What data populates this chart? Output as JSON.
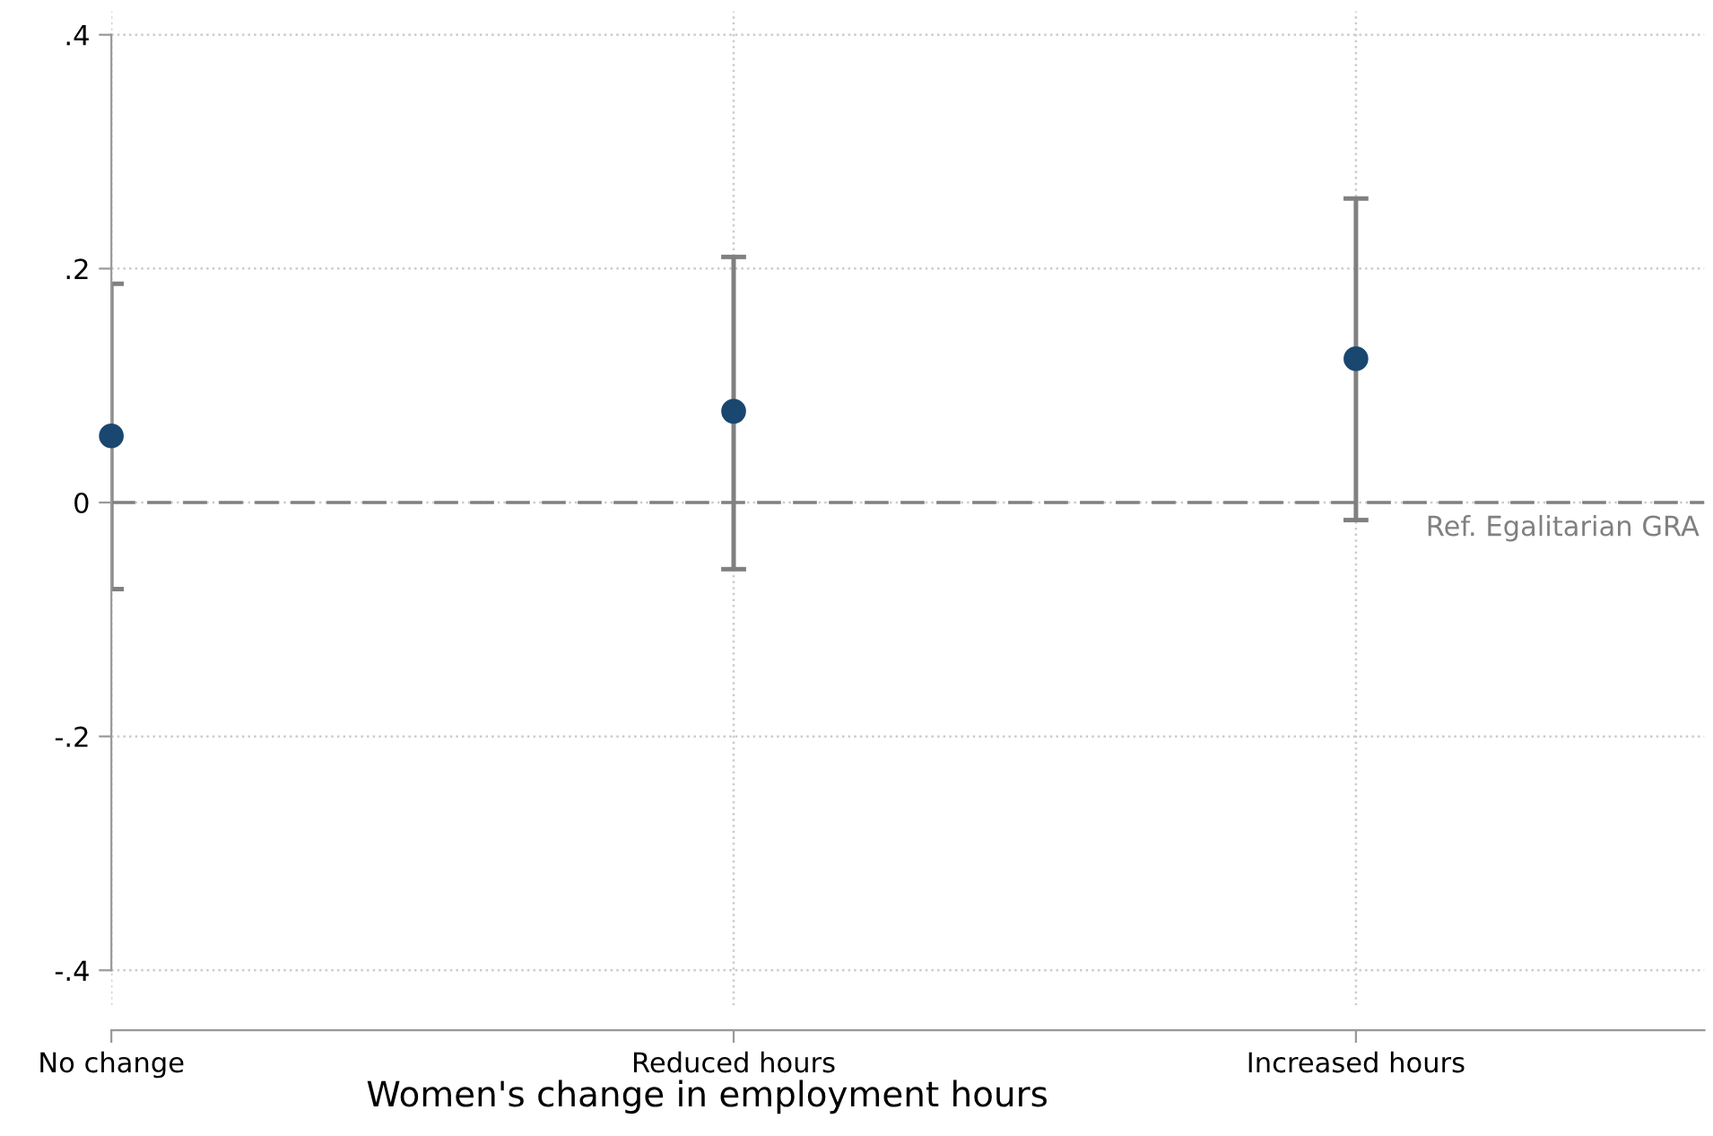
{
  "chart_data": {
    "type": "scatter",
    "xlabel": "Women's change in employment hours",
    "categories": [
      "No change",
      "Reduced hours",
      "Increased hours"
    ],
    "series": [
      {
        "color": "#1a476f",
        "values": [
          0.057,
          0.078,
          0.123
        ],
        "errors": [
          [
            -0.074,
            0.187
          ],
          [
            -0.057,
            0.21
          ],
          [
            -0.015,
            0.26
          ]
        ]
      }
    ],
    "ylim": [
      -0.43,
      0.42
    ],
    "yticks": [
      {
        "value": -0.4,
        "label": "-.4"
      },
      {
        "value": -0.2,
        "label": "-.2"
      },
      {
        "value": 0,
        "label": "0"
      },
      {
        "value": 0.2,
        "label": ".2"
      },
      {
        "value": 0.4,
        "label": ".4"
      }
    ],
    "ref_lines": [
      {
        "axis": "y",
        "value": 0,
        "label": "Ref. Egalitarian GRA",
        "color": "#808080",
        "line_style": "dashed"
      }
    ],
    "grid": true,
    "marker": "circle"
  }
}
